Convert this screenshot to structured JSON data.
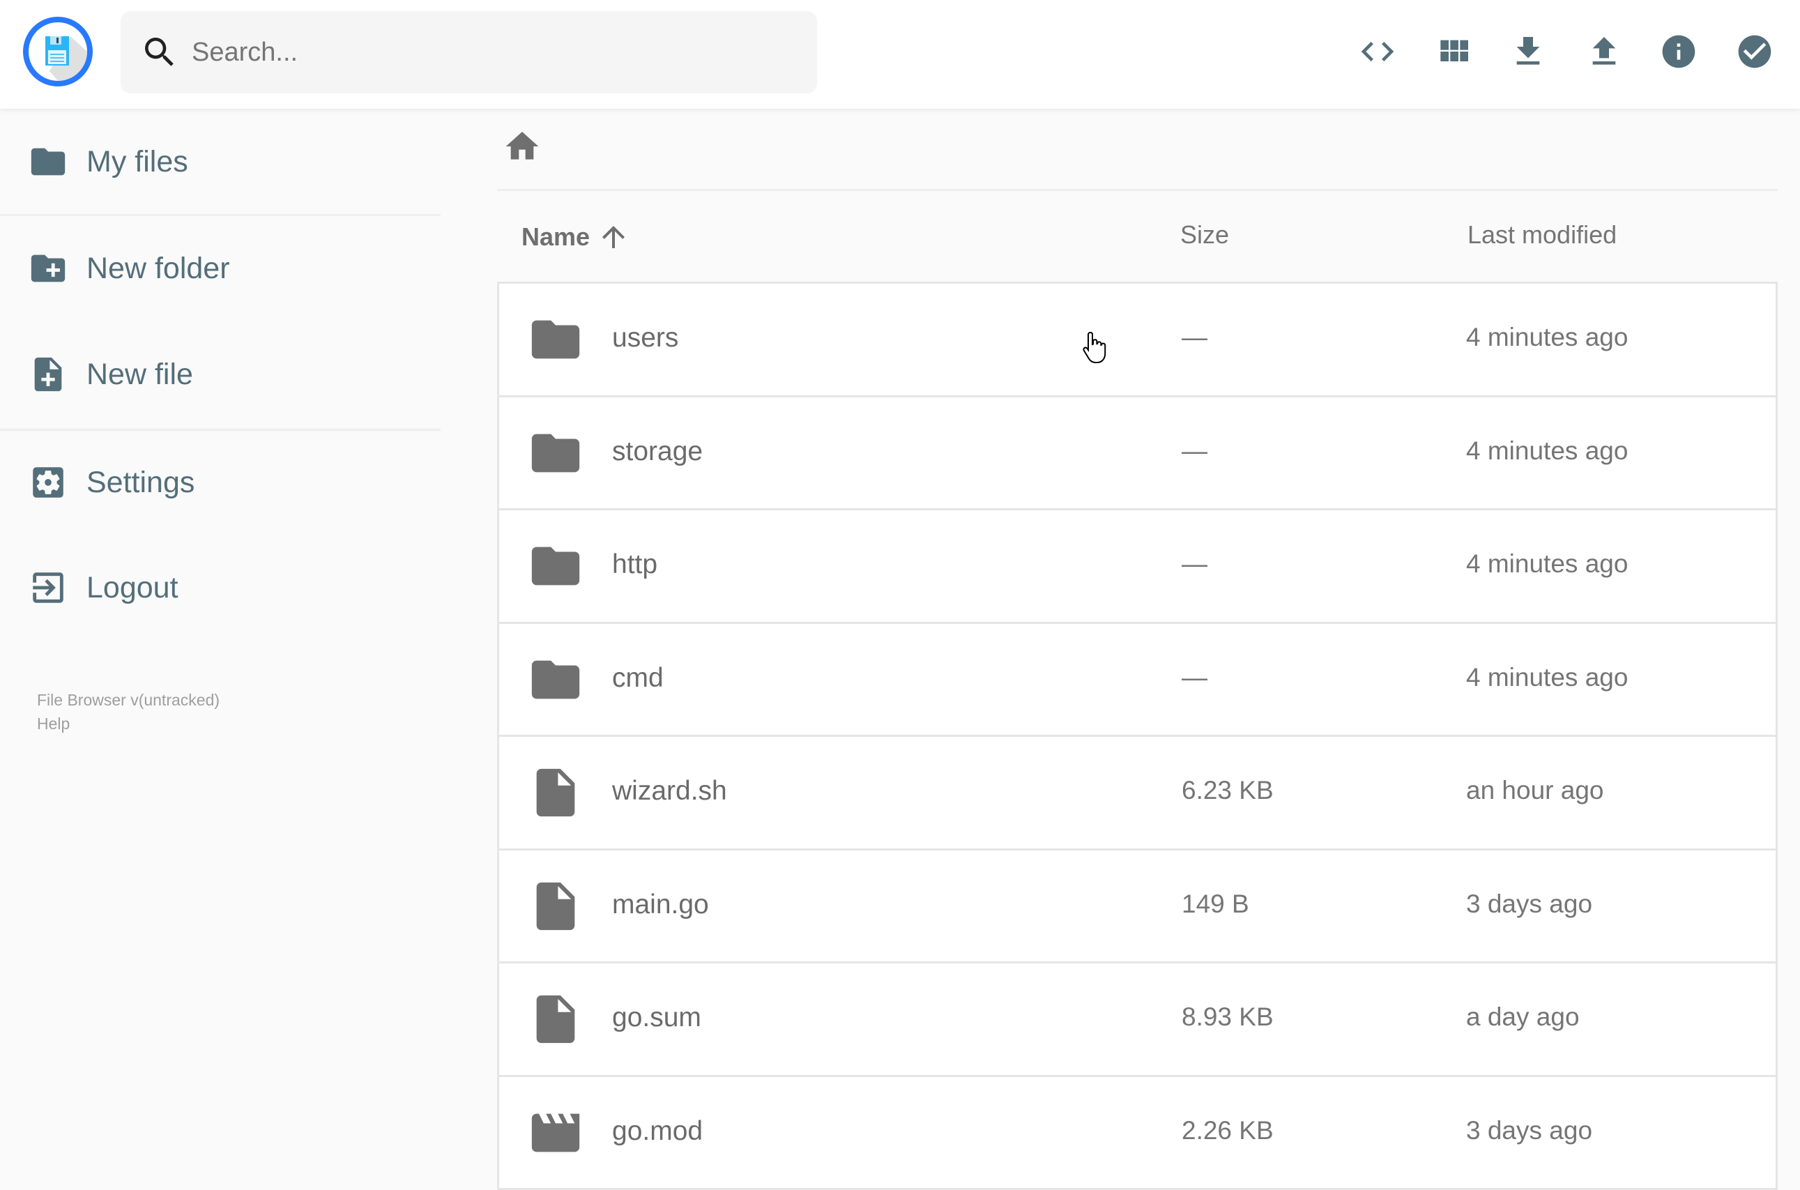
{
  "header": {
    "search_placeholder": "Search...",
    "actions": [
      {
        "name": "code-icon",
        "label": "toggle-code"
      },
      {
        "name": "grid-view-icon",
        "label": "switch-view"
      },
      {
        "name": "download-icon",
        "label": "download"
      },
      {
        "name": "upload-icon",
        "label": "upload"
      },
      {
        "name": "info-icon",
        "label": "info"
      },
      {
        "name": "check-circle-icon",
        "label": "select-multiple"
      }
    ],
    "accent": "#2979ff",
    "icon_color": "#546e7a"
  },
  "sidebar": {
    "items": [
      {
        "label": "My files",
        "icon": "folder-icon"
      },
      {
        "label": "New folder",
        "icon": "new-folder-icon"
      },
      {
        "label": "New file",
        "icon": "new-file-icon"
      },
      {
        "label": "Settings",
        "icon": "settings-icon"
      },
      {
        "label": "Logout",
        "icon": "logout-icon"
      }
    ],
    "footer_version": "File Browser v(untracked)",
    "footer_help": "Help"
  },
  "files": {
    "columns": {
      "name": "Name",
      "size": "Size",
      "modified": "Last modified"
    },
    "sort": "name-ascending",
    "rows": [
      {
        "name": "users",
        "type": "folder",
        "size": "—",
        "modified": "4 minutes ago"
      },
      {
        "name": "storage",
        "type": "folder",
        "size": "—",
        "modified": "4 minutes ago"
      },
      {
        "name": "http",
        "type": "folder",
        "size": "—",
        "modified": "4 minutes ago"
      },
      {
        "name": "cmd",
        "type": "folder",
        "size": "—",
        "modified": "4 minutes ago"
      },
      {
        "name": "wizard.sh",
        "type": "file",
        "size": "6.23 KB",
        "modified": "an hour ago"
      },
      {
        "name": "main.go",
        "type": "file",
        "size": "149 B",
        "modified": "3 days ago"
      },
      {
        "name": "go.sum",
        "type": "file",
        "size": "8.93 KB",
        "modified": "a day ago"
      },
      {
        "name": "go.mod",
        "type": "video",
        "size": "2.26 KB",
        "modified": "3 days ago"
      }
    ]
  }
}
